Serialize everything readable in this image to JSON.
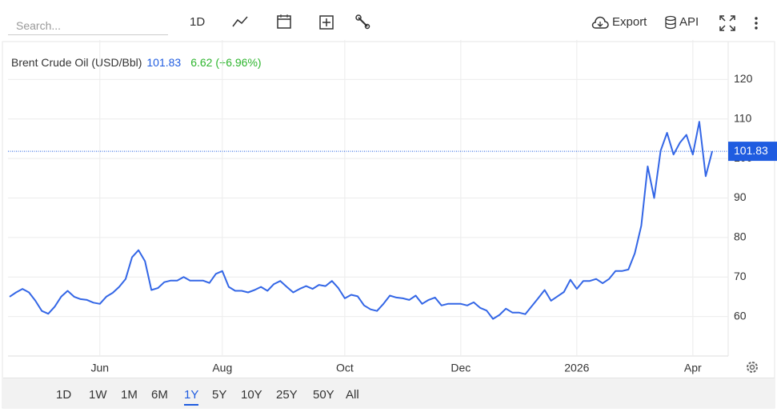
{
  "toolbar": {
    "search_placeholder": "Search...",
    "interval": "1D",
    "export": "Export",
    "api": "API"
  },
  "chart_data": {
    "type": "line",
    "title": "Brent Crude Oil (USD/Bbl)",
    "change": "6.62 (+6.96%)",
    "color": "#3366e6",
    "price_color": "#1f5ce0",
    "change_color": "#2db52d",
    "categories": [
      null,
      null,
      null,
      null,
      null,
      null,
      null,
      null,
      null,
      null,
      null,
      null,
      null,
      null,
      "Jun",
      null,
      null,
      null,
      null,
      null,
      null,
      null,
      null,
      null,
      null,
      null,
      null,
      null,
      null,
      null,
      null,
      null,
      null,
      "Aug",
      null,
      null,
      null,
      null,
      null,
      null,
      null,
      null,
      null,
      null,
      null,
      null,
      null,
      null,
      null,
      null,
      null,
      null,
      "Oct",
      null,
      null,
      null,
      null,
      null,
      null,
      null,
      null,
      null,
      null,
      null,
      null,
      null,
      null,
      null,
      null,
      null,
      "Dec",
      null,
      null,
      null,
      null,
      null,
      null,
      null,
      null,
      null,
      null,
      null,
      null,
      null,
      null,
      null,
      null,
      null,
      "2026",
      null,
      null,
      null,
      null,
      null,
      null,
      null,
      null,
      null,
      null,
      null,
      null,
      null,
      null,
      null,
      null,
      null,
      "Apr",
      null,
      null,
      null
    ],
    "values": [
      65.0,
      66.1,
      67.0,
      66.1,
      64.0,
      61.4,
      60.7,
      62.5,
      65.0,
      66.5,
      65.0,
      64.4,
      64.2,
      63.5,
      63.2,
      65.0,
      66.0,
      67.5,
      69.5,
      75.0,
      76.8,
      74.0,
      66.7,
      67.2,
      68.7,
      69.1,
      69.1,
      70.0,
      69.1,
      69.1,
      69.1,
      68.5,
      70.8,
      71.5,
      67.5,
      66.5,
      66.5,
      66.1,
      66.7,
      67.5,
      66.5,
      68.2,
      69.0,
      67.5,
      66.1,
      67.0,
      67.7,
      67.0,
      68.0,
      67.7,
      69.0,
      67.2,
      64.6,
      65.5,
      65.1,
      62.8,
      61.8,
      61.4,
      63.2,
      65.3,
      64.8,
      64.6,
      64.2,
      65.3,
      63.2,
      64.2,
      64.8,
      62.8,
      63.2,
      63.2,
      63.2,
      62.8,
      63.6,
      62.2,
      61.5,
      59.4,
      60.4,
      62.0,
      61.0,
      61.0,
      60.6,
      62.6,
      64.6,
      66.7,
      64.0,
      65.1,
      66.2,
      69.3,
      67.0,
      69.0,
      69.0,
      69.5,
      68.4,
      69.5,
      71.5,
      71.5,
      71.9,
      76.0,
      83.0,
      98.0,
      90.0,
      102.0,
      106.5,
      101.0,
      104.0,
      106.0,
      101.0,
      109.3,
      95.5,
      101.83
    ],
    "ylim": [
      50,
      130
    ],
    "yticks": [
      60,
      70,
      80,
      90,
      100,
      110,
      120
    ],
    "grid": true
  },
  "range_buttons": {
    "items": [
      "1D",
      "1W",
      "1M",
      "6M",
      "1Y",
      "5Y",
      "10Y",
      "25Y",
      "50Y",
      "All"
    ],
    "active": 4
  }
}
